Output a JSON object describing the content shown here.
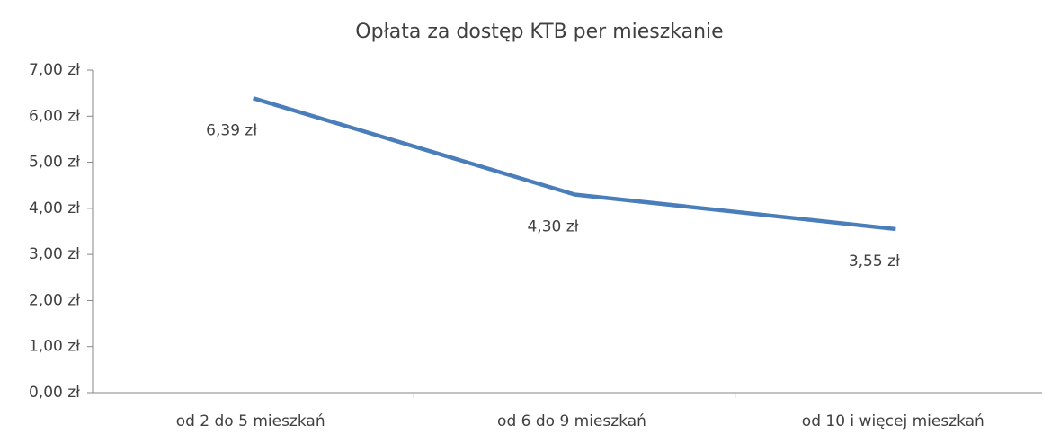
{
  "chart_data": {
    "type": "line",
    "title": "Opłata za dostęp KTB per mieszkanie",
    "categories": [
      "od 2 do 5 mieszkań",
      "od 6 do 9 mieszkań",
      "od 10 i więcej  mieszkań"
    ],
    "values": [
      6.39,
      4.3,
      3.55
    ],
    "value_labels": [
      "6,39 zł",
      "4,30 zł",
      "3,55 zł"
    ],
    "color": "#4a7ebb",
    "ylim": [
      0,
      7
    ],
    "yticks": [
      {
        "value": 0,
        "label": "0,00 zł"
      },
      {
        "value": 1,
        "label": "1,00 zł"
      },
      {
        "value": 2,
        "label": "2,00 zł"
      },
      {
        "value": 3,
        "label": "3,00 zł"
      },
      {
        "value": 4,
        "label": "4,00 zł"
      },
      {
        "value": 5,
        "label": "5,00 zł"
      },
      {
        "value": 6,
        "label": "6,00 zł"
      },
      {
        "value": 7,
        "label": "7,00 zł"
      }
    ],
    "grid": false
  }
}
